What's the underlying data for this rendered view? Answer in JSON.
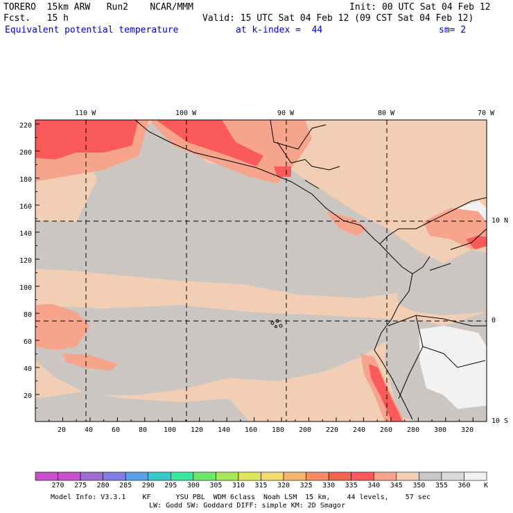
{
  "header": {
    "model": "TORERO  15km ARW   Run2    NCAR/MMM",
    "init": "Init: 00 UTC Sat 04 Feb 12",
    "fcst": "Fcst.   15 h",
    "valid": "Valid: 15 UTC Sat 04 Feb 12 (09 CST Sat 04 Feb 12)",
    "field": "Equivalent potential temperature",
    "level": "at k-index =  44",
    "smooth": "sm= 2"
  },
  "map": {
    "lon_labels": [
      "110 W",
      "100 W",
      "90 W",
      "80 W",
      "70 W"
    ],
    "lat_labels": [
      "10 N",
      "0",
      "10 S"
    ],
    "y_ticks": [
      "220",
      "200",
      "180",
      "160",
      "140",
      "120",
      "100",
      "80",
      "60",
      "40",
      "20"
    ],
    "x_ticks": [
      "20",
      "40",
      "60",
      "80",
      "100",
      "120",
      "140",
      "160",
      "180",
      "200",
      "220",
      "240",
      "260",
      "280",
      "300",
      "320"
    ],
    "grid_x": [
      20,
      40,
      60,
      80,
      100,
      120,
      140,
      160,
      180,
      200,
      220,
      240,
      260,
      280,
      300,
      320,
      330
    ],
    "grid_y": [
      20,
      40,
      60,
      80,
      100,
      120,
      140,
      160,
      180,
      200,
      220,
      223
    ]
  },
  "colorbar": {
    "labels": [
      "270",
      "275",
      "280",
      "285",
      "290",
      "295",
      "300",
      "305",
      "310",
      "315",
      "320",
      "325",
      "330",
      "335",
      "340",
      "345",
      "350",
      "355",
      "360"
    ],
    "unit": "K",
    "colors": [
      "#c850c8",
      "#9e6ed2",
      "#7e7ee6",
      "#5aa0e6",
      "#3cc8c8",
      "#3ce69a",
      "#6ee66e",
      "#a6e65a",
      "#dce65a",
      "#f0dc6e",
      "#f5b46e",
      "#f58c64",
      "#f06450",
      "#fa5a5a",
      "#f7a48c",
      "#f2cfb4",
      "#cbc6c2",
      "#d9d9d9",
      "#f2f2f2"
    ]
  },
  "footer": {
    "line1": "Model Info: V3.3.1    KF      YSU PBL  WDM 6class  Noah LSM  15 km,    44 levels,    57 sec",
    "line2": "LW: Godd SW: Goddard DIFF: simple KM: 2D Smagor"
  }
}
